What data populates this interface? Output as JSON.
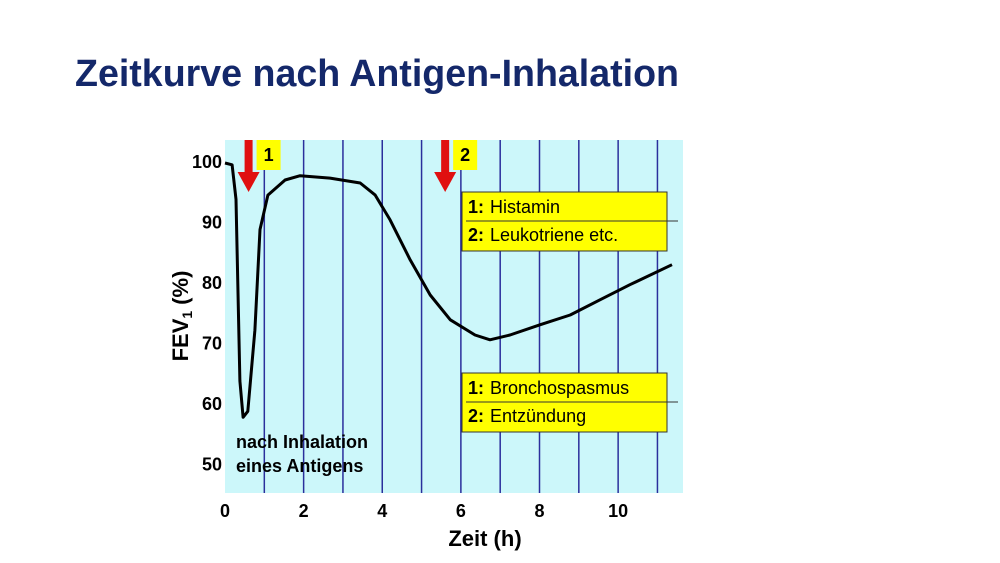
{
  "chart_data": {
    "type": "line",
    "title": "Zeitkurve nach Antigen-Inhalation",
    "xlabel": "Zeit (h)",
    "ylabel": {
      "main": "FEV",
      "sub": "1",
      "unit": "(%)"
    },
    "x": [
      0,
      0.18,
      0.28,
      0.38,
      0.46,
      0.58,
      0.76,
      0.89,
      1.09,
      1.53,
      1.91,
      2.67,
      3.44,
      3.82,
      4.2,
      4.71,
      5.22,
      5.73,
      6.36,
      6.74,
      7.25,
      8.02,
      8.78,
      9.54,
      10.3,
      11.37
    ],
    "values": [
      100,
      99.7,
      94,
      64,
      58,
      59,
      72.4,
      89,
      94.7,
      97.2,
      97.9,
      97.5,
      96.7,
      94.7,
      90.6,
      84,
      78.2,
      74.1,
      71.6,
      70.8,
      71.6,
      73.3,
      74.9,
      77.4,
      79.9,
      83.2
    ],
    "color": "#000000",
    "xlim": [
      0,
      11.65
    ],
    "ylim": [
      45.5,
      103.8
    ],
    "xticks": [
      0,
      2,
      4,
      6,
      8,
      10
    ],
    "yticks": [
      50,
      60,
      70,
      80,
      90,
      100
    ],
    "minor_xticks": [
      1,
      2,
      3,
      4,
      5,
      6,
      7,
      8,
      9,
      10,
      11
    ],
    "events": [
      {
        "x": 0.6,
        "label": "1"
      },
      {
        "x": 5.6,
        "label": "2"
      }
    ],
    "boxes": [
      {
        "lines": [
          {
            "marker": "1:",
            "text": "Histamin"
          },
          {
            "marker": "2:",
            "text": "Leukotriene etc."
          }
        ]
      },
      {
        "lines": [
          {
            "marker": "1:",
            "text": "Bronchospasmus"
          },
          {
            "marker": "2:",
            "text": "Entzündung"
          }
        ]
      }
    ],
    "note": [
      "nach Inhalation",
      "eines Antigens"
    ]
  }
}
